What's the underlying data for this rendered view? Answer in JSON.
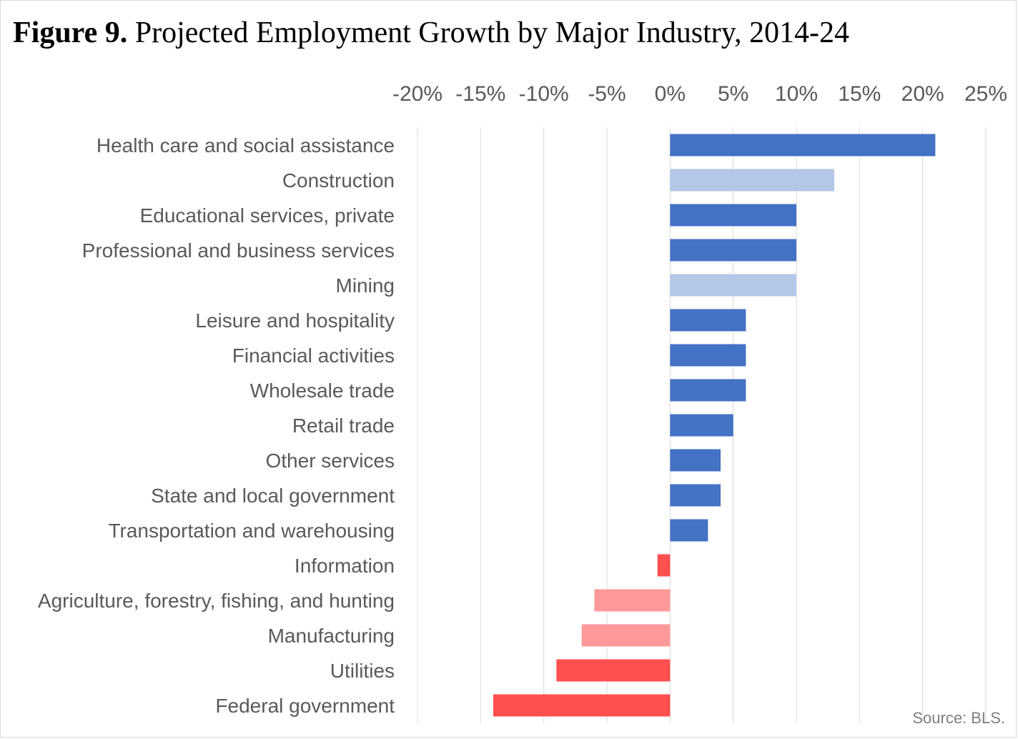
{
  "title": {
    "figure_label": "Figure 9.",
    "text": "Projected Employment Growth by Major Industry, 2014-24"
  },
  "source": "Source: BLS.",
  "colors": {
    "positive_dark": "#4472c4",
    "positive_light": "#b4c7e7",
    "negative_dark": "#ff4f4f",
    "negative_light": "#ff9999",
    "gridline": "#d9d9d9",
    "label": "#595959"
  },
  "chart_data": {
    "type": "bar",
    "orientation": "horizontal",
    "categories": [
      "Health care and social assistance",
      "Construction",
      "Educational services, private",
      "Professional and business services",
      "Mining",
      "Leisure and hospitality",
      "Financial activities",
      "Wholesale trade",
      "Retail trade",
      "Other services",
      "State and local government",
      "Transportation and warehousing",
      "Information",
      "Agriculture, forestry, fishing, and hunting",
      "Manufacturing",
      "Utilities",
      "Federal government"
    ],
    "values": [
      21,
      13,
      10,
      10,
      10,
      6,
      6,
      6,
      5,
      4,
      4,
      3,
      -1,
      -6,
      -7,
      -9,
      -14
    ],
    "bar_colors": [
      "positive_dark",
      "positive_light",
      "positive_dark",
      "positive_dark",
      "positive_light",
      "positive_dark",
      "positive_dark",
      "positive_dark",
      "positive_dark",
      "positive_dark",
      "positive_dark",
      "positive_dark",
      "negative_dark",
      "negative_light",
      "negative_light",
      "negative_dark",
      "negative_dark"
    ],
    "xlim": [
      -20,
      25
    ],
    "xticks": [
      -20,
      -15,
      -10,
      -5,
      0,
      5,
      10,
      15,
      20,
      25
    ],
    "xtick_labels": [
      "-20%",
      "-15%",
      "-10%",
      "-5%",
      "0%",
      "5%",
      "10%",
      "15%",
      "20%",
      "25%"
    ],
    "axis_position": "top",
    "grid": true,
    "legend": "none",
    "xlabel": "",
    "ylabel": ""
  }
}
